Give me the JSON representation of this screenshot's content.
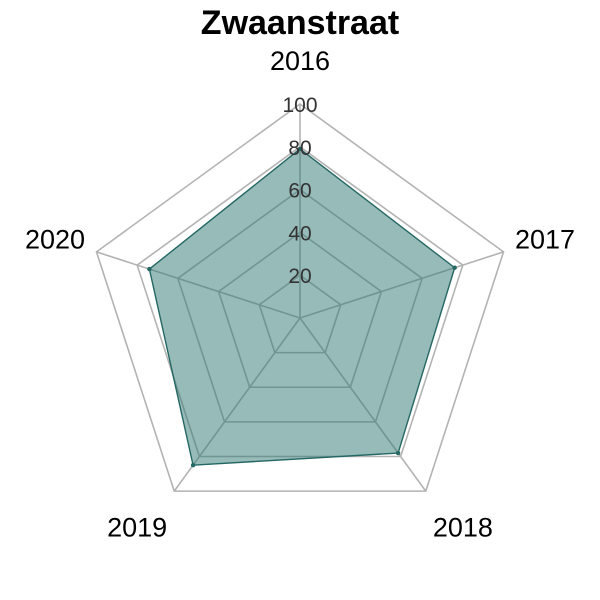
{
  "chart_data": {
    "type": "radar",
    "title": "Zwaanstraat",
    "categories": [
      "2016",
      "2017",
      "2018",
      "2019",
      "2020"
    ],
    "series": [
      {
        "values": [
          79,
          76,
          78,
          85,
          74
        ]
      }
    ],
    "rlim": [
      0,
      100
    ],
    "ticks": [
      "20",
      "40",
      "60",
      "80",
      "100"
    ],
    "grid": true,
    "colors": {
      "fill": "#2e7873",
      "stroke": "#256763",
      "grid": "#b3b3b3"
    }
  }
}
